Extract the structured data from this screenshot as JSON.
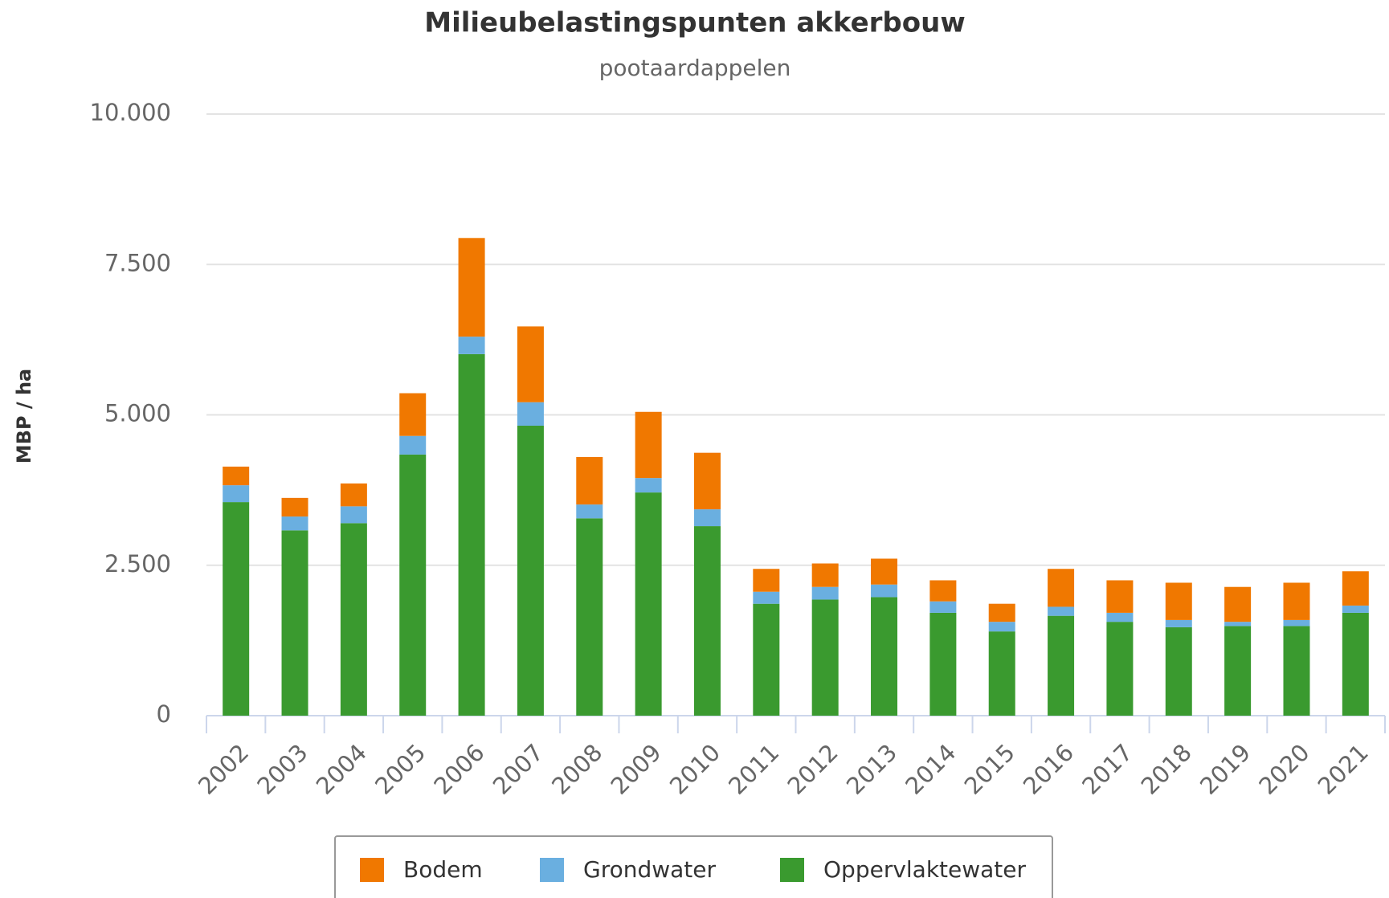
{
  "chart_data": {
    "type": "stacked-bar",
    "title": "Milieubelastingspunten akkerbouw",
    "subtitle": "pootaardappelen",
    "ylabel": "MBP / ha",
    "categories": [
      "2002",
      "2003",
      "2004",
      "2005",
      "2006",
      "2007",
      "2008",
      "2009",
      "2010",
      "2011",
      "2012",
      "2013",
      "2014",
      "2015",
      "2016",
      "2017",
      "2018",
      "2019",
      "2020",
      "2021"
    ],
    "series": [
      {
        "name": "Bodem",
        "color": "#f07800",
        "values": [
          310,
          310,
          380,
          710,
          1640,
          1260,
          790,
          1100,
          940,
          380,
          390,
          430,
          350,
          300,
          630,
          540,
          620,
          580,
          620,
          570
        ]
      },
      {
        "name": "Grondwater",
        "color": "#6aafe0",
        "values": [
          280,
          230,
          280,
          310,
          290,
          390,
          230,
          240,
          280,
          200,
          210,
          210,
          190,
          160,
          150,
          150,
          120,
          70,
          100,
          120
        ]
      },
      {
        "name": "Oppervlaktewater",
        "color": "#3a9a2f",
        "values": [
          3550,
          3080,
          3200,
          4340,
          6010,
          4820,
          3280,
          3710,
          3150,
          1860,
          1930,
          1970,
          1710,
          1400,
          1660,
          1560,
          1470,
          1490,
          1490,
          1710
        ]
      }
    ],
    "ylim": [
      0,
      10000
    ],
    "yticks": [
      0,
      {
        "value": 2500,
        "label": "2.500"
      },
      {
        "value": 5000,
        "label": "5.000"
      },
      {
        "value": 7500,
        "label": "7.500"
      },
      {
        "value": 10000,
        "label": "10.000"
      }
    ],
    "grid": true
  }
}
